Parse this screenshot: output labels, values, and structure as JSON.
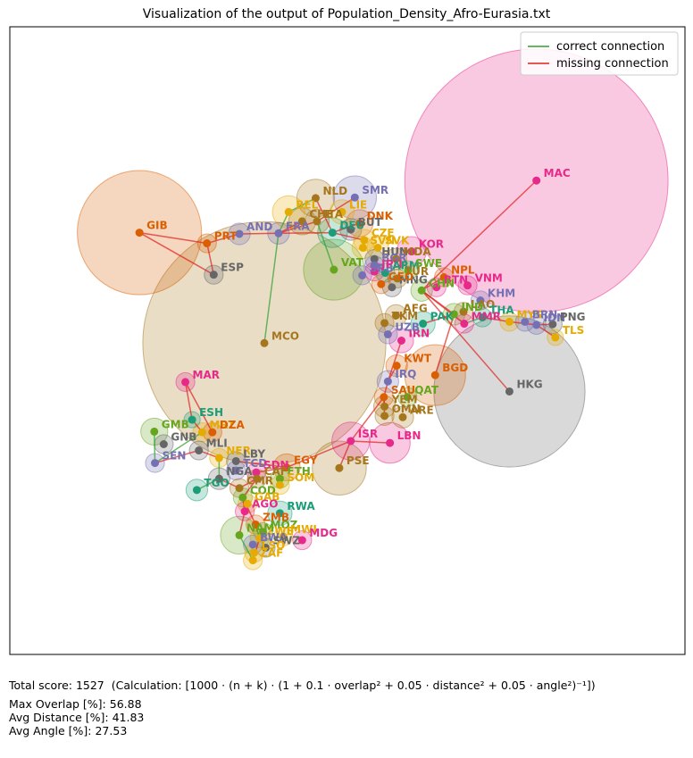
{
  "chart_data": {
    "type": "scatter",
    "title": "Visualization of the output of Population_Density_Afro-Eurasia.txt",
    "xlabel": "",
    "ylabel": "",
    "xlim": [
      0,
      1000
    ],
    "ylim": [
      0,
      1000
    ],
    "grid": false,
    "axes_ticks": false,
    "legend": {
      "placement": "top-right",
      "entries": [
        {
          "name": "correct connection",
          "color": "#2ca02c"
        },
        {
          "name": "missing connection",
          "color": "#e0201b"
        }
      ]
    },
    "points": [
      {
        "label": "MAC",
        "x": 780,
        "y": 755,
        "r": 195,
        "color": "#e7298a"
      },
      {
        "label": "GIB",
        "x": 192,
        "y": 672,
        "r": 92,
        "color": "#d95f02"
      },
      {
        "label": "HKG",
        "x": 740,
        "y": 419,
        "r": 112,
        "color": "#666666"
      },
      {
        "label": "MCO",
        "x": 377,
        "y": 496,
        "r": 180,
        "color": "#a6761d"
      },
      {
        "label": "NLD",
        "x": 453,
        "y": 727,
        "r": 28,
        "color": "#a6761d"
      },
      {
        "label": "SMR",
        "x": 511,
        "y": 728,
        "r": 32,
        "color": "#7570b3"
      },
      {
        "label": "BEL",
        "x": 413,
        "y": 705,
        "r": 24,
        "color": "#e6ab02"
      },
      {
        "label": "LIE",
        "x": 492,
        "y": 705,
        "r": 18,
        "color": "#e6ab02"
      },
      {
        "label": "CHE",
        "x": 433,
        "y": 690,
        "r": 20,
        "color": "#a6761d"
      },
      {
        "label": "ITA",
        "x": 455,
        "y": 690,
        "r": 18,
        "color": "#a6761d"
      },
      {
        "label": "DNK",
        "x": 518,
        "y": 687,
        "r": 20,
        "color": "#d95f02"
      },
      {
        "label": "AND",
        "x": 340,
        "y": 670,
        "r": 16,
        "color": "#7570b3"
      },
      {
        "label": "FRA",
        "x": 398,
        "y": 671,
        "r": 16,
        "color": "#7570b3"
      },
      {
        "label": "DEU",
        "x": 478,
        "y": 672,
        "r": 22,
        "color": "#1b9e77"
      },
      {
        "label": "BUT",
        "x": 505,
        "y": 677,
        "r": 16,
        "color": "#666666"
      },
      {
        "label": "PRT",
        "x": 292,
        "y": 655,
        "r": 14,
        "color": "#d95f02"
      },
      {
        "label": "ESP",
        "x": 302,
        "y": 605,
        "r": 14,
        "color": "#666666"
      },
      {
        "label": "CZE",
        "x": 525,
        "y": 660,
        "r": 16,
        "color": "#e6ab02"
      },
      {
        "label": "SVK",
        "x": 545,
        "y": 648,
        "r": 16,
        "color": "#e6ab02"
      },
      {
        "label": "SVN",
        "x": 523,
        "y": 648,
        "r": 16,
        "color": "#e6ab02"
      },
      {
        "label": "KOR",
        "x": 595,
        "y": 642,
        "r": 22,
        "color": "#e7298a"
      },
      {
        "label": "HUN",
        "x": 540,
        "y": 630,
        "r": 14,
        "color": "#666666"
      },
      {
        "label": "MDA",
        "x": 572,
        "y": 630,
        "r": 16,
        "color": "#a6761d"
      },
      {
        "label": "VAT",
        "x": 480,
        "y": 613,
        "r": 45,
        "color": "#66a61e"
      },
      {
        "label": "BGR",
        "x": 540,
        "y": 620,
        "r": 14,
        "color": "#7570b3"
      },
      {
        "label": "SRB",
        "x": 522,
        "y": 604,
        "r": 14,
        "color": "#7570b3"
      },
      {
        "label": "JPN",
        "x": 540,
        "y": 610,
        "r": 14,
        "color": "#e7298a"
      },
      {
        "label": "ARM",
        "x": 556,
        "y": 608,
        "r": 14,
        "color": "#1b9e77"
      },
      {
        "label": "SWE",
        "x": 590,
        "y": 612,
        "r": 14,
        "color": "#66a61e"
      },
      {
        "label": "TUR",
        "x": 574,
        "y": 599,
        "r": 14,
        "color": "#a6761d"
      },
      {
        "label": "NPL",
        "x": 643,
        "y": 601,
        "r": 14,
        "color": "#d95f02"
      },
      {
        "label": "BTN",
        "x": 632,
        "y": 585,
        "r": 14,
        "color": "#e7298a"
      },
      {
        "label": "VNM",
        "x": 678,
        "y": 588,
        "r": 14,
        "color": "#e7298a"
      },
      {
        "label": "KHM",
        "x": 697,
        "y": 564,
        "r": 14,
        "color": "#7570b3"
      },
      {
        "label": "LAO",
        "x": 672,
        "y": 546,
        "r": 14,
        "color": "#a6761d"
      },
      {
        "label": "MNG",
        "x": 566,
        "y": 585,
        "r": 14,
        "color": "#666666"
      },
      {
        "label": "GEO",
        "x": 550,
        "y": 590,
        "r": 14,
        "color": "#d95f02"
      },
      {
        "label": "CHN",
        "x": 610,
        "y": 580,
        "r": 16,
        "color": "#66a61e"
      },
      {
        "label": "THA",
        "x": 700,
        "y": 537,
        "r": 14,
        "color": "#1b9e77"
      },
      {
        "label": "MYS",
        "x": 740,
        "y": 530,
        "r": 14,
        "color": "#e6ab02"
      },
      {
        "label": "BRN",
        "x": 763,
        "y": 530,
        "r": 14,
        "color": "#7570b3"
      },
      {
        "label": "IDN",
        "x": 780,
        "y": 525,
        "r": 14,
        "color": "#7570b3"
      },
      {
        "label": "PNG",
        "x": 804,
        "y": 526,
        "r": 14,
        "color": "#666666"
      },
      {
        "label": "TLS",
        "x": 808,
        "y": 505,
        "r": 12,
        "color": "#e6ab02"
      },
      {
        "label": "MMR",
        "x": 673,
        "y": 527,
        "r": 14,
        "color": "#e7298a"
      },
      {
        "label": "IND",
        "x": 658,
        "y": 542,
        "r": 16,
        "color": "#66a61e"
      },
      {
        "label": "PAK",
        "x": 612,
        "y": 527,
        "r": 18,
        "color": "#1b9e77"
      },
      {
        "label": "AFG",
        "x": 572,
        "y": 540,
        "r": 16,
        "color": "#a6761d"
      },
      {
        "label": "IRN",
        "x": 580,
        "y": 500,
        "r": 18,
        "color": "#e7298a"
      },
      {
        "label": "TKM",
        "x": 555,
        "y": 528,
        "r": 14,
        "color": "#a6761d"
      },
      {
        "label": "UZB",
        "x": 560,
        "y": 510,
        "r": 14,
        "color": "#7570b3"
      },
      {
        "label": "KWT",
        "x": 573,
        "y": 460,
        "r": 16,
        "color": "#d95f02"
      },
      {
        "label": "BGD",
        "x": 630,
        "y": 445,
        "r": 45,
        "color": "#d95f02"
      },
      {
        "label": "IRQ",
        "x": 560,
        "y": 435,
        "r": 16,
        "color": "#7570b3"
      },
      {
        "label": "SAU",
        "x": 554,
        "y": 410,
        "r": 14,
        "color": "#d95f02"
      },
      {
        "label": "QAT",
        "x": 589,
        "y": 410,
        "r": 14,
        "color": "#66a61e"
      },
      {
        "label": "YEM",
        "x": 555,
        "y": 395,
        "r": 16,
        "color": "#a6761d"
      },
      {
        "label": "ARE",
        "x": 582,
        "y": 378,
        "r": 16,
        "color": "#a6761d"
      },
      {
        "label": "OMN",
        "x": 555,
        "y": 380,
        "r": 14,
        "color": "#a6761d"
      },
      {
        "label": "ISR",
        "x": 505,
        "y": 340,
        "r": 28,
        "color": "#e7298a"
      },
      {
        "label": "LBN",
        "x": 563,
        "y": 337,
        "r": 30,
        "color": "#e7298a"
      },
      {
        "label": "PSE",
        "x": 488,
        "y": 297,
        "r": 40,
        "color": "#a6761d"
      },
      {
        "label": "EGY",
        "x": 410,
        "y": 298,
        "r": 20,
        "color": "#d95f02"
      },
      {
        "label": "MAR",
        "x": 260,
        "y": 434,
        "r": 14,
        "color": "#e7298a"
      },
      {
        "label": "ESH",
        "x": 270,
        "y": 374,
        "r": 12,
        "color": "#1b9e77"
      },
      {
        "label": "GMB",
        "x": 214,
        "y": 355,
        "r": 20,
        "color": "#66a61e"
      },
      {
        "label": "MRT",
        "x": 285,
        "y": 354,
        "r": 14,
        "color": "#e6ab02"
      },
      {
        "label": "DZA",
        "x": 300,
        "y": 354,
        "r": 14,
        "color": "#d95f02"
      },
      {
        "label": "GNB",
        "x": 228,
        "y": 335,
        "r": 14,
        "color": "#666666"
      },
      {
        "label": "MLI",
        "x": 280,
        "y": 325,
        "r": 14,
        "color": "#666666"
      },
      {
        "label": "NER",
        "x": 310,
        "y": 313,
        "r": 14,
        "color": "#e6ab02"
      },
      {
        "label": "LBY",
        "x": 335,
        "y": 308,
        "r": 14,
        "color": "#666666"
      },
      {
        "label": "SEN",
        "x": 215,
        "y": 305,
        "r": 14,
        "color": "#7570b3"
      },
      {
        "label": "TCD",
        "x": 335,
        "y": 293,
        "r": 14,
        "color": "#7570b3"
      },
      {
        "label": "NGA",
        "x": 310,
        "y": 280,
        "r": 16,
        "color": "#666666"
      },
      {
        "label": "TGO",
        "x": 277,
        "y": 262,
        "r": 16,
        "color": "#1b9e77"
      },
      {
        "label": "SDN",
        "x": 365,
        "y": 290,
        "r": 14,
        "color": "#e7298a"
      },
      {
        "label": "CAF",
        "x": 366,
        "y": 280,
        "r": 14,
        "color": "#a6761d"
      },
      {
        "label": "ETH",
        "x": 400,
        "y": 280,
        "r": 14,
        "color": "#66a61e"
      },
      {
        "label": "SOM",
        "x": 400,
        "y": 270,
        "r": 14,
        "color": "#e6ab02"
      },
      {
        "label": "CMR",
        "x": 340,
        "y": 265,
        "r": 14,
        "color": "#a6761d"
      },
      {
        "label": "COD",
        "x": 345,
        "y": 250,
        "r": 14,
        "color": "#66a61e"
      },
      {
        "label": "GAB",
        "x": 352,
        "y": 240,
        "r": 14,
        "color": "#e6ab02"
      },
      {
        "label": "AGO",
        "x": 348,
        "y": 228,
        "r": 14,
        "color": "#e7298a"
      },
      {
        "label": "RWA",
        "x": 400,
        "y": 225,
        "r": 18,
        "color": "#1b9e77"
      },
      {
        "label": "ZMB",
        "x": 364,
        "y": 207,
        "r": 14,
        "color": "#d95f02"
      },
      {
        "label": "MOZ",
        "x": 375,
        "y": 195,
        "r": 14,
        "color": "#66a61e"
      },
      {
        "label": "MWI",
        "x": 405,
        "y": 188,
        "r": 14,
        "color": "#e6ab02"
      },
      {
        "label": "ZWE",
        "x": 370,
        "y": 185,
        "r": 14,
        "color": "#e6ab02"
      },
      {
        "label": "BWA",
        "x": 360,
        "y": 175,
        "r": 14,
        "color": "#7570b3"
      },
      {
        "label": "SWZ",
        "x": 379,
        "y": 170,
        "r": 14,
        "color": "#666666"
      },
      {
        "label": "LSO",
        "x": 362,
        "y": 162,
        "r": 14,
        "color": "#e6ab02"
      },
      {
        "label": "ZAF",
        "x": 360,
        "y": 150,
        "r": 14,
        "color": "#e6ab02"
      },
      {
        "label": "NAM",
        "x": 340,
        "y": 190,
        "r": 28,
        "color": "#66a61e"
      },
      {
        "label": "MDG",
        "x": 433,
        "y": 182,
        "r": 14,
        "color": "#e7298a"
      }
    ],
    "connections": [
      {
        "from": "GIB",
        "to": "ESP",
        "status": "missing"
      },
      {
        "from": "GIB",
        "to": "PRT",
        "status": "missing"
      },
      {
        "from": "PRT",
        "to": "ESP",
        "status": "missing"
      },
      {
        "from": "PRT",
        "to": "AND",
        "status": "missing"
      },
      {
        "from": "AND",
        "to": "FRA",
        "status": "missing"
      },
      {
        "from": "FRA",
        "to": "BEL",
        "status": "correct"
      },
      {
        "from": "FRA",
        "to": "CHE",
        "status": "missing"
      },
      {
        "from": "FRA",
        "to": "DEU",
        "status": "missing"
      },
      {
        "from": "FRA",
        "to": "ITA",
        "status": "missing"
      },
      {
        "from": "FRA",
        "to": "MCO",
        "status": "correct"
      },
      {
        "from": "BEL",
        "to": "NLD",
        "status": "correct"
      },
      {
        "from": "NLD",
        "to": "DEU",
        "status": "missing"
      },
      {
        "from": "DEU",
        "to": "DNK",
        "status": "missing"
      },
      {
        "from": "SMR",
        "to": "ITA",
        "status": "missing"
      },
      {
        "from": "ITA",
        "to": "VAT",
        "status": "correct"
      },
      {
        "from": "DEU",
        "to": "CZE",
        "status": "missing"
      },
      {
        "from": "MAC",
        "to": "CHN",
        "status": "missing"
      },
      {
        "from": "HKG",
        "to": "CHN",
        "status": "missing"
      },
      {
        "from": "CHN",
        "to": "MMR",
        "status": "missing"
      },
      {
        "from": "CHN",
        "to": "IND",
        "status": "missing"
      },
      {
        "from": "CHN",
        "to": "NPL",
        "status": "missing"
      },
      {
        "from": "IND",
        "to": "BGD",
        "status": "missing"
      },
      {
        "from": "IND",
        "to": "PAK",
        "status": "missing"
      },
      {
        "from": "MMR",
        "to": "THA",
        "status": "correct"
      },
      {
        "from": "THA",
        "to": "MYS",
        "status": "missing"
      },
      {
        "from": "MYS",
        "to": "IDN",
        "status": "missing"
      },
      {
        "from": "IDN",
        "to": "PNG",
        "status": "missing"
      },
      {
        "from": "IDN",
        "to": "TLS",
        "status": "missing"
      },
      {
        "from": "IRN",
        "to": "IRQ",
        "status": "missing"
      },
      {
        "from": "IRQ",
        "to": "KWT",
        "status": "missing"
      },
      {
        "from": "IRQ",
        "to": "SAU",
        "status": "missing"
      },
      {
        "from": "SAU",
        "to": "YEM",
        "status": "missing"
      },
      {
        "from": "SAU",
        "to": "OMN",
        "status": "missing"
      },
      {
        "from": "SAU",
        "to": "ISR",
        "status": "missing"
      },
      {
        "from": "ISR",
        "to": "LBN",
        "status": "missing"
      },
      {
        "from": "ISR",
        "to": "PSE",
        "status": "missing"
      },
      {
        "from": "ISR",
        "to": "EGY",
        "status": "missing"
      },
      {
        "from": "EGY",
        "to": "LBY",
        "status": "missing"
      },
      {
        "from": "EGY",
        "to": "SDN",
        "status": "missing"
      },
      {
        "from": "MAR",
        "to": "ESH",
        "status": "missing"
      },
      {
        "from": "MAR",
        "to": "DZA",
        "status": "missing"
      },
      {
        "from": "ESH",
        "to": "MRT",
        "status": "missing"
      },
      {
        "from": "MRT",
        "to": "SEN",
        "status": "correct"
      },
      {
        "from": "SEN",
        "to": "GMB",
        "status": "correct"
      },
      {
        "from": "SEN",
        "to": "MLI",
        "status": "missing"
      },
      {
        "from": "MLI",
        "to": "NER",
        "status": "missing"
      },
      {
        "from": "NER",
        "to": "NGA",
        "status": "correct"
      },
      {
        "from": "NGA",
        "to": "CMR",
        "status": "missing"
      },
      {
        "from": "CMR",
        "to": "CAF",
        "status": "missing"
      },
      {
        "from": "CAF",
        "to": "COD",
        "status": "missing"
      },
      {
        "from": "COD",
        "to": "AGO",
        "status": "missing"
      },
      {
        "from": "COD",
        "to": "ZMB",
        "status": "missing"
      },
      {
        "from": "ZMB",
        "to": "ZWE",
        "status": "correct"
      },
      {
        "from": "ZWE",
        "to": "ZAF",
        "status": "missing"
      },
      {
        "from": "ZAF",
        "to": "LSO",
        "status": "correct"
      },
      {
        "from": "ZAF",
        "to": "NAM",
        "status": "correct"
      },
      {
        "from": "NAM",
        "to": "AGO",
        "status": "missing"
      },
      {
        "from": "ETH",
        "to": "SOM",
        "status": "missing"
      },
      {
        "from": "TGO",
        "to": "NGA",
        "status": "correct"
      }
    ]
  },
  "footer": {
    "total_score": "Total score: 1527",
    "calculation": "(Calculation: [1000 · (n + k) · (1 + 0.1 · overlap² + 0.05 · distance² + 0.05 · angle²)⁻¹])",
    "max_overlap": "Max Overlap [%]: 56.88",
    "avg_distance": "Avg Distance [%]: 41.83",
    "avg_angle": "Avg Angle [%]: 27.53"
  },
  "colors": {
    "correct": "#2ca02c",
    "missing": "#e0201b"
  }
}
